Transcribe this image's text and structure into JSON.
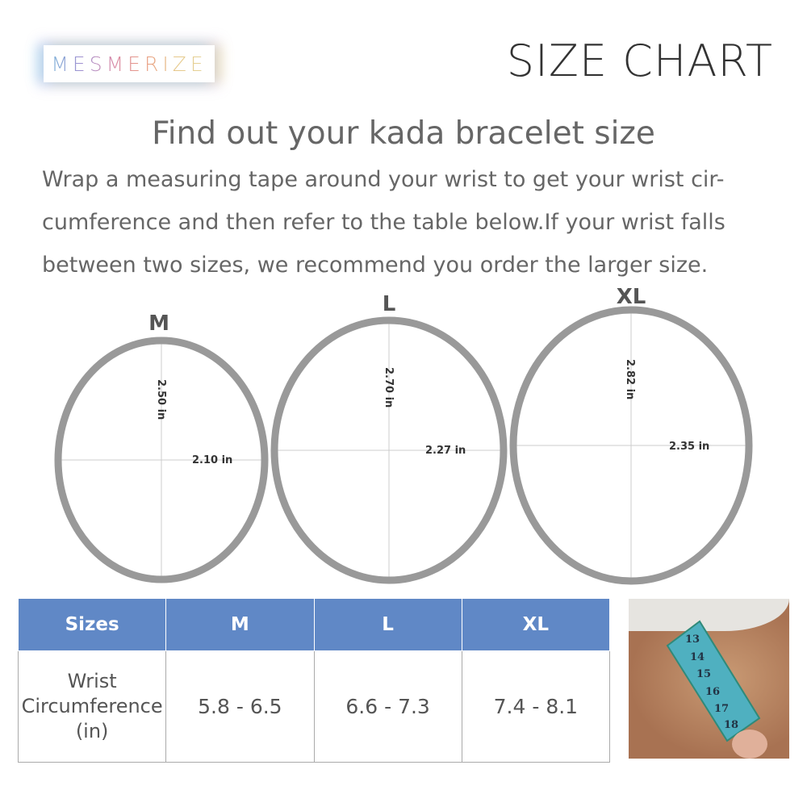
{
  "brand": "MESMERIZE",
  "title": "SIZE CHART",
  "heading": "Find out your kada bracelet size",
  "intro": "Wrap a measuring tape around your wrist to get your wrist cir-cumference and then refer to the table below.If your wrist falls between two sizes, we recommend you order the larger size.",
  "bracelets": [
    {
      "size": "M",
      "height": "2.50 in",
      "width": "2.10 in"
    },
    {
      "size": "L",
      "height": "2.70 in",
      "width": "2.27 in"
    },
    {
      "size": "XL",
      "height": "2.82 in",
      "width": "2.35 in"
    }
  ],
  "table": {
    "headers": [
      "Sizes",
      "M",
      "L",
      "XL"
    ],
    "row_label": [
      "Wrist",
      "Circumference",
      "(in)"
    ],
    "values": [
      "5.8 - 6.5",
      "6.6 - 7.3",
      "7.4 - 8.1"
    ]
  },
  "photo": {
    "tape_numbers": [
      "13",
      "14",
      "15",
      "16",
      "17",
      "18"
    ]
  },
  "colors": {
    "header": "#6088c6",
    "ring": "#999999"
  }
}
